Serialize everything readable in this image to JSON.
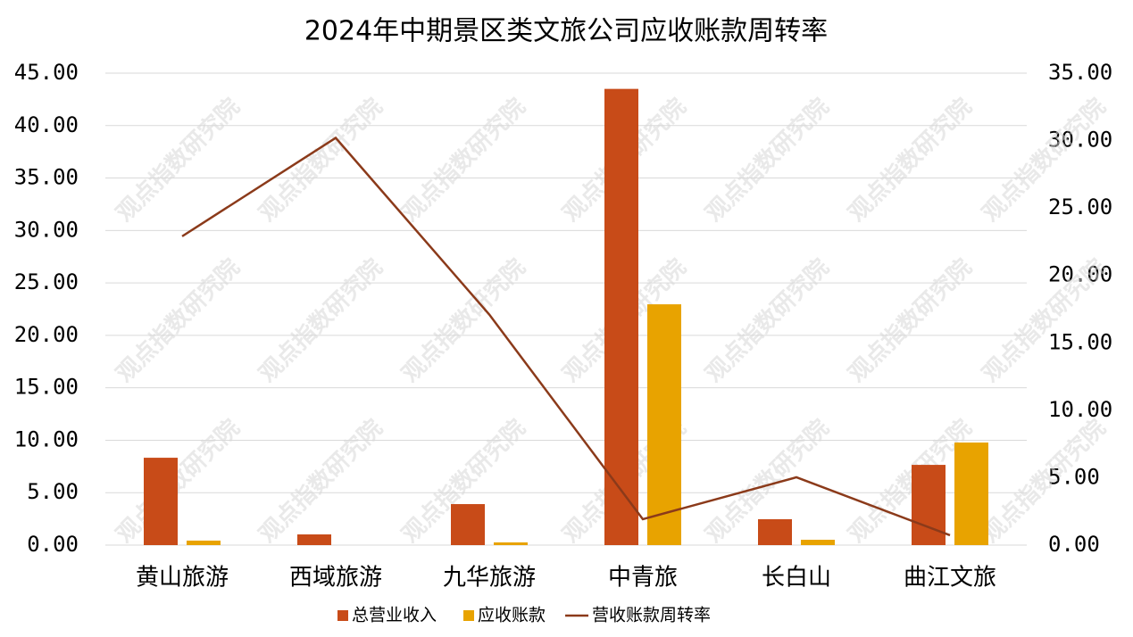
{
  "chart_data": {
    "type": "bar-line",
    "title": "2024年中期景区类文旅公司应收账款周转率",
    "watermark": "观点指数研究院",
    "categories": [
      "黄山旅游",
      "西域旅游",
      "九华旅游",
      "中青旅",
      "长白山",
      "曲江文旅"
    ],
    "series": [
      {
        "name": "总营业收入",
        "type": "bar",
        "color": "#C84B18",
        "values": [
          8.33,
          1.02,
          3.91,
          43.5,
          2.47,
          7.65
        ]
      },
      {
        "name": "应收账款",
        "type": "bar",
        "color": "#E8A300",
        "values": [
          0.43,
          null,
          0.26,
          22.96,
          0.51,
          9.78
        ]
      },
      {
        "name": "营收账款周转率",
        "type": "line",
        "axis": "y2",
        "color": "#8B3A1A",
        "values": [
          22.9,
          30.2,
          17.1,
          1.92,
          5.03,
          0.73
        ]
      }
    ],
    "ylim": [
      0,
      45
    ],
    "yticks": [
      {
        "value": 0,
        "label": "0.00"
      },
      {
        "value": 5,
        "label": "5.00"
      },
      {
        "value": 10,
        "label": "10.00"
      },
      {
        "value": 15,
        "label": "15.00"
      },
      {
        "value": 20,
        "label": "20.00"
      },
      {
        "value": 25,
        "label": "25.00"
      },
      {
        "value": 30,
        "label": "30.00"
      },
      {
        "value": 35,
        "label": "35.00"
      },
      {
        "value": 40,
        "label": "40.00"
      },
      {
        "value": 45,
        "label": "45.00"
      }
    ],
    "y2lim": [
      0,
      35
    ],
    "y2ticks": [
      {
        "value": 0,
        "label": "0.00"
      },
      {
        "value": 5,
        "label": "5.00"
      },
      {
        "value": 10,
        "label": "10.00"
      },
      {
        "value": 15,
        "label": "15.00"
      },
      {
        "value": 20,
        "label": "20.00"
      },
      {
        "value": 25,
        "label": "25.00"
      },
      {
        "value": 30,
        "label": "30.00"
      },
      {
        "value": 35,
        "label": "35.00"
      }
    ],
    "grid": true,
    "legend": "bottom"
  }
}
